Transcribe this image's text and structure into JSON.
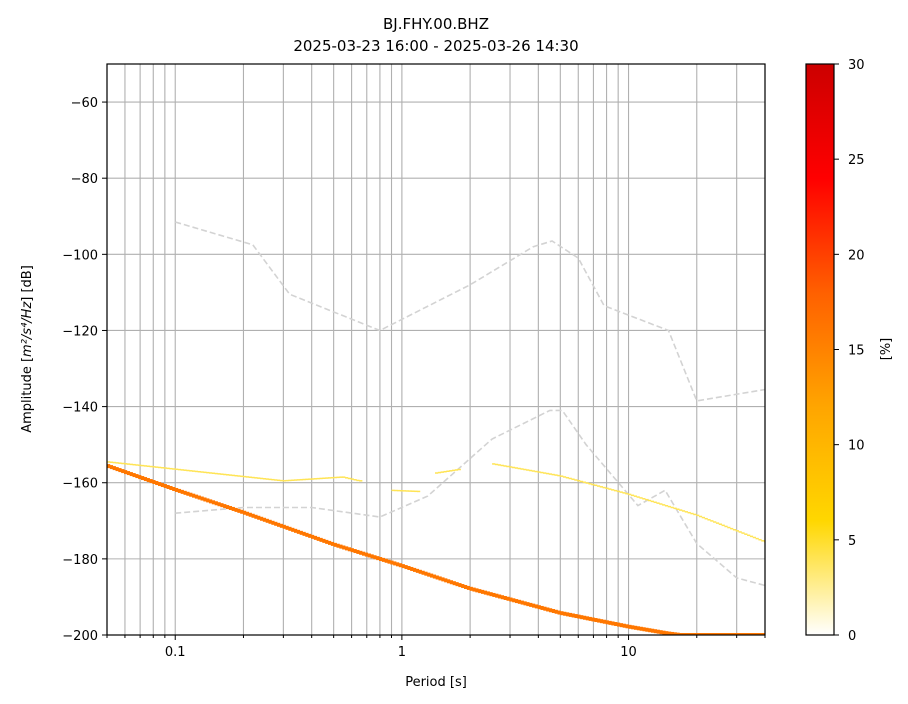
{
  "chart_data": {
    "type": "heatmap",
    "title": "BJ.FHY.00.BHZ",
    "subtitle": "2025-03-23 16:00 - 2025-03-26 14:30",
    "xlabel": "Period [s]",
    "ylabel_prefix": "Amplitude [",
    "ylabel_math": "m²/s⁴/Hz",
    "ylabel_suffix": "] [dB]",
    "xscale": "log",
    "xlim": [
      0.05,
      40
    ],
    "ylim": [
      -200,
      -50
    ],
    "x_major_ticks": [
      0.1,
      1,
      10
    ],
    "x_tick_labels": [
      "0.1",
      "1",
      "10"
    ],
    "y_ticks": [
      -60,
      -80,
      -100,
      -120,
      -140,
      -160,
      -180,
      -200
    ],
    "y_tick_labels": [
      "−60",
      "−80",
      "−100",
      "−120",
      "−140",
      "−160",
      "−180",
      "−200"
    ],
    "grid": true,
    "colorbar": {
      "label": "[%]",
      "range": [
        0,
        30
      ],
      "ticks": [
        0,
        5,
        10,
        15,
        20,
        25,
        30
      ],
      "tick_labels": [
        "0",
        "5",
        "10",
        "15",
        "20",
        "25",
        "30"
      ],
      "colors": [
        "#ffffff",
        "#ffd700",
        "#ffa500",
        "#ff6000",
        "#ff0000",
        "#cc0000"
      ]
    },
    "noise_models": [
      {
        "name": "high",
        "points": [
          [
            0.1,
            -91.5
          ],
          [
            0.22,
            -97.5
          ],
          [
            0.32,
            -110.5
          ],
          [
            0.8,
            -120
          ],
          [
            2.0,
            -108
          ],
          [
            3.8,
            -98
          ],
          [
            4.6,
            -96.5
          ],
          [
            6.0,
            -101
          ],
          [
            7.8,
            -113.5
          ],
          [
            15,
            -120
          ],
          [
            20,
            -138.5
          ],
          [
            40,
            -135.5
          ]
        ]
      },
      {
        "name": "low",
        "points": [
          [
            0.1,
            -168
          ],
          [
            0.2,
            -166.5
          ],
          [
            0.4,
            -166.5
          ],
          [
            0.8,
            -169
          ],
          [
            1.3,
            -163.5
          ],
          [
            2.5,
            -148.5
          ],
          [
            4.5,
            -141
          ],
          [
            5.1,
            -141
          ],
          [
            6.5,
            -150
          ],
          [
            11,
            -166
          ],
          [
            14.5,
            -162
          ],
          [
            20,
            -176
          ],
          [
            30,
            -185
          ],
          [
            40,
            -187
          ]
        ]
      }
    ],
    "psd_main": [
      [
        0.05,
        -155.5
      ],
      [
        0.1,
        -161.8
      ],
      [
        0.2,
        -167.8
      ],
      [
        0.5,
        -176.2
      ],
      [
        1,
        -181.8
      ],
      [
        2,
        -187.8
      ],
      [
        5,
        -194.2
      ],
      [
        10,
        -197.8
      ],
      [
        15,
        -199.6
      ],
      [
        17,
        -200
      ]
    ],
    "psd_main_percent": 16,
    "psd_faint": [
      [
        [
          0.05,
          -154.5
        ],
        [
          0.3,
          -159.5
        ],
        [
          0.55,
          -158.5
        ],
        [
          0.65,
          -159.5
        ]
      ],
      [
        [
          0.9,
          -162
        ],
        [
          1.2,
          -162.3
        ]
      ],
      [
        [
          1.4,
          -157.5
        ],
        [
          1.8,
          -156.5
        ]
      ],
      [
        [
          2.5,
          -155
        ],
        [
          5,
          -158.2
        ],
        [
          10,
          -163
        ],
        [
          20,
          -168.5
        ],
        [
          40,
          -175.5
        ]
      ]
    ],
    "psd_faint_percent": 4
  }
}
